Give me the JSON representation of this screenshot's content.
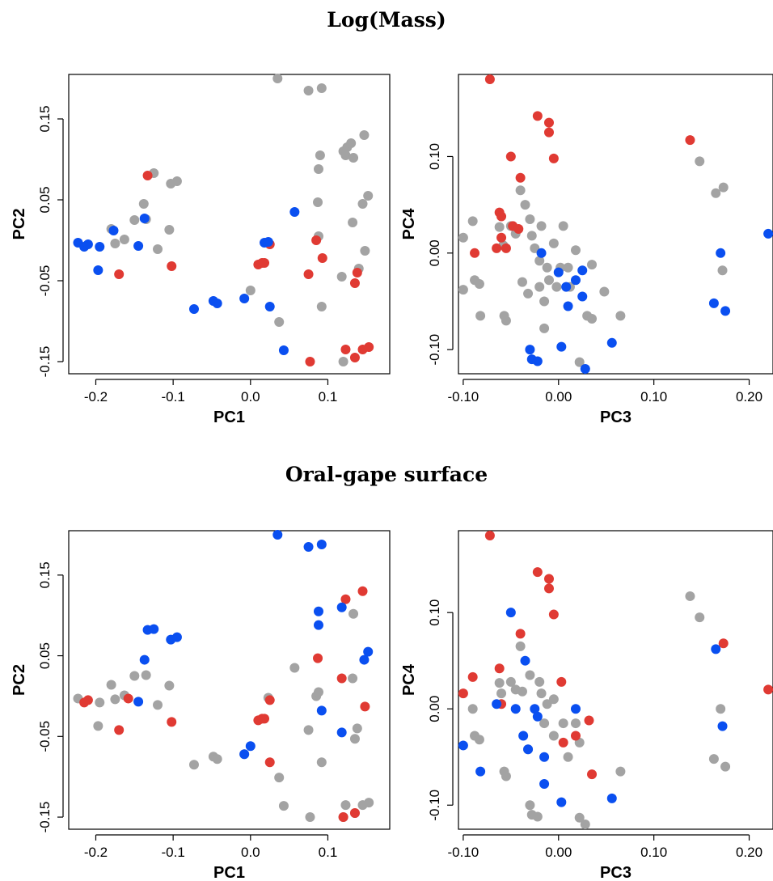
{
  "sections": {
    "mass_title": "Log(Mass)",
    "gape_title": "Oral-gape surface"
  },
  "colors": {
    "grey": "#a3a3a3",
    "red": "#e03a33",
    "blue": "#0a4ff0"
  },
  "chart_data": [
    {
      "type": "scatter",
      "title": "Log(Mass)",
      "xlabel": "PC1",
      "ylabel": "PC2",
      "xlim": [
        -0.235,
        0.18
      ],
      "ylim": [
        -0.165,
        0.205
      ],
      "xticks": [
        -0.2,
        -0.1,
        0.0,
        0.1
      ],
      "xtick_labels": [
        "-0.2",
        "-0.1",
        "0.0",
        "0.1"
      ],
      "yticks": [
        -0.15,
        -0.05,
        0.05,
        0.15
      ],
      "ytick_labels": [
        "-0.15",
        "-0.05",
        "0.05",
        "0.15"
      ],
      "grey": [
        [
          -0.18,
          0.014
        ],
        [
          -0.175,
          -0.004
        ],
        [
          -0.163,
          0.001
        ],
        [
          -0.15,
          0.025
        ],
        [
          -0.138,
          0.045
        ],
        [
          -0.135,
          0.026
        ],
        [
          -0.125,
          0.083
        ],
        [
          -0.12,
          -0.011
        ],
        [
          -0.105,
          0.013
        ],
        [
          -0.103,
          0.07
        ],
        [
          -0.095,
          0.073
        ],
        [
          0.0,
          -0.062
        ],
        [
          0.035,
          0.2
        ],
        [
          0.037,
          -0.101
        ],
        [
          0.075,
          0.185
        ],
        [
          0.087,
          0.047
        ],
        [
          0.088,
          0.005
        ],
        [
          0.088,
          0.088
        ],
        [
          0.09,
          0.105
        ],
        [
          0.092,
          0.188
        ],
        [
          0.092,
          -0.082
        ],
        [
          0.118,
          -0.045
        ],
        [
          0.12,
          0.11
        ],
        [
          0.12,
          -0.15
        ],
        [
          0.123,
          0.105
        ],
        [
          0.125,
          0.115
        ],
        [
          0.13,
          0.12
        ],
        [
          0.133,
          0.102
        ],
        [
          0.14,
          -0.035
        ],
        [
          0.145,
          0.045
        ],
        [
          0.147,
          0.13
        ],
        [
          0.148,
          -0.013
        ],
        [
          0.152,
          0.055
        ],
        [
          0.132,
          0.022
        ]
      ],
      "red": [
        [
          -0.17,
          -0.042
        ],
        [
          -0.133,
          0.08
        ],
        [
          -0.102,
          -0.032
        ],
        [
          0.01,
          -0.03
        ],
        [
          0.015,
          -0.028
        ],
        [
          0.018,
          -0.028
        ],
        [
          0.025,
          -0.005
        ],
        [
          0.075,
          -0.042
        ],
        [
          0.077,
          -0.15
        ],
        [
          0.085,
          0.0
        ],
        [
          0.093,
          -0.022
        ],
        [
          0.123,
          -0.135
        ],
        [
          0.135,
          -0.145
        ],
        [
          0.135,
          -0.053
        ],
        [
          0.138,
          -0.04
        ],
        [
          0.145,
          -0.135
        ],
        [
          0.153,
          -0.132
        ]
      ],
      "blue": [
        [
          -0.223,
          -0.003
        ],
        [
          -0.215,
          -0.008
        ],
        [
          -0.21,
          -0.005
        ],
        [
          -0.197,
          -0.037
        ],
        [
          -0.195,
          -0.008
        ],
        [
          -0.177,
          0.012
        ],
        [
          -0.145,
          -0.007
        ],
        [
          -0.137,
          0.027
        ],
        [
          -0.073,
          -0.085
        ],
        [
          -0.048,
          -0.075
        ],
        [
          -0.043,
          -0.078
        ],
        [
          -0.008,
          -0.072
        ],
        [
          0.018,
          -0.003
        ],
        [
          0.023,
          -0.002
        ],
        [
          0.025,
          -0.082
        ],
        [
          0.043,
          -0.136
        ],
        [
          0.057,
          0.035
        ]
      ]
    },
    {
      "type": "scatter",
      "title": "Log(Mass)",
      "xlabel": "PC3",
      "ylabel": "PC4",
      "xlim": [
        -0.105,
        0.225
      ],
      "ylim": [
        -0.125,
        0.185
      ],
      "xticks": [
        -0.1,
        0.0,
        0.1,
        0.2
      ],
      "xtick_labels": [
        "-0.10",
        "0.00",
        "0.10",
        "0.20"
      ],
      "yticks": [
        -0.1,
        0.0,
        0.1
      ],
      "ytick_labels": [
        "-0.10",
        "0.00",
        "0.10"
      ],
      "grey": [
        [
          -0.1,
          0.016
        ],
        [
          -0.1,
          -0.038
        ],
        [
          -0.09,
          0.033
        ],
        [
          -0.088,
          -0.028
        ],
        [
          -0.083,
          -0.032
        ],
        [
          -0.082,
          -0.065
        ],
        [
          -0.062,
          0.027
        ],
        [
          -0.058,
          0.008
        ],
        [
          -0.057,
          -0.065
        ],
        [
          -0.055,
          -0.07
        ],
        [
          -0.05,
          0.028
        ],
        [
          -0.045,
          0.02
        ],
        [
          -0.04,
          0.065
        ],
        [
          -0.038,
          -0.03
        ],
        [
          -0.035,
          0.05
        ],
        [
          -0.032,
          -0.042
        ],
        [
          -0.03,
          0.035
        ],
        [
          -0.028,
          0.018
        ],
        [
          -0.025,
          0.005
        ],
        [
          -0.02,
          -0.008
        ],
        [
          -0.02,
          -0.035
        ],
        [
          -0.018,
          0.028
        ],
        [
          -0.015,
          -0.05
        ],
        [
          -0.015,
          -0.078
        ],
        [
          -0.012,
          -0.015
        ],
        [
          -0.01,
          -0.028
        ],
        [
          -0.005,
          0.01
        ],
        [
          -0.002,
          -0.035
        ],
        [
          0.002,
          -0.015
        ],
        [
          0.005,
          0.028
        ],
        [
          0.01,
          -0.015
        ],
        [
          0.012,
          -0.035
        ],
        [
          0.018,
          0.003
        ],
        [
          0.022,
          -0.113
        ],
        [
          0.03,
          -0.065
        ],
        [
          0.035,
          -0.012
        ],
        [
          0.035,
          -0.068
        ],
        [
          0.048,
          -0.04
        ],
        [
          0.065,
          -0.065
        ],
        [
          0.148,
          0.095
        ],
        [
          0.165,
          0.062
        ],
        [
          0.172,
          -0.018
        ],
        [
          0.173,
          0.068
        ]
      ],
      "red": [
        [
          -0.088,
          0.0
        ],
        [
          -0.072,
          0.18
        ],
        [
          -0.065,
          0.005
        ],
        [
          -0.062,
          0.042
        ],
        [
          -0.06,
          0.038
        ],
        [
          -0.06,
          0.016
        ],
        [
          -0.055,
          0.005
        ],
        [
          -0.05,
          0.1
        ],
        [
          -0.048,
          0.028
        ],
        [
          -0.042,
          0.025
        ],
        [
          -0.04,
          0.078
        ],
        [
          -0.022,
          0.142
        ],
        [
          -0.01,
          0.135
        ],
        [
          -0.01,
          0.125
        ],
        [
          -0.005,
          0.098
        ],
        [
          0.138,
          0.117
        ]
      ],
      "blue": [
        [
          -0.03,
          -0.1
        ],
        [
          -0.028,
          -0.11
        ],
        [
          -0.022,
          -0.112
        ],
        [
          -0.018,
          0.0
        ],
        [
          0.0,
          -0.02
        ],
        [
          0.003,
          -0.097
        ],
        [
          0.008,
          -0.035
        ],
        [
          0.01,
          -0.055
        ],
        [
          0.018,
          -0.028
        ],
        [
          0.025,
          -0.018
        ],
        [
          0.025,
          -0.045
        ],
        [
          0.028,
          -0.12
        ],
        [
          0.056,
          -0.093
        ],
        [
          0.163,
          -0.052
        ],
        [
          0.17,
          0.0
        ],
        [
          0.175,
          -0.06
        ],
        [
          0.22,
          0.02
        ]
      ]
    },
    {
      "type": "scatter",
      "title": "Oral-gape surface",
      "xlabel": "PC1",
      "ylabel": "PC2",
      "xlim": [
        -0.235,
        0.18
      ],
      "ylim": [
        -0.165,
        0.205
      ],
      "xticks": [
        -0.2,
        -0.1,
        0.0,
        0.1
      ],
      "xtick_labels": [
        "-0.2",
        "-0.1",
        "0.0",
        "0.1"
      ],
      "yticks": [
        -0.15,
        -0.05,
        0.05,
        0.15
      ],
      "ytick_labels": [
        "-0.15",
        "-0.05",
        "0.05",
        "0.15"
      ],
      "grey": [
        [
          -0.223,
          -0.003
        ],
        [
          -0.197,
          -0.037
        ],
        [
          -0.195,
          -0.008
        ],
        [
          -0.18,
          0.014
        ],
        [
          -0.175,
          -0.004
        ],
        [
          -0.163,
          0.001
        ],
        [
          -0.15,
          0.025
        ],
        [
          -0.135,
          0.026
        ],
        [
          -0.12,
          -0.011
        ],
        [
          -0.105,
          0.013
        ],
        [
          -0.073,
          -0.085
        ],
        [
          -0.048,
          -0.075
        ],
        [
          -0.043,
          -0.078
        ],
        [
          -0.008,
          -0.072
        ],
        [
          0.023,
          -0.002
        ],
        [
          0.037,
          -0.101
        ],
        [
          0.043,
          -0.136
        ],
        [
          0.057,
          0.035
        ],
        [
          0.075,
          -0.042
        ],
        [
          0.077,
          -0.15
        ],
        [
          0.085,
          0.0
        ],
        [
          0.088,
          0.005
        ],
        [
          0.092,
          -0.082
        ],
        [
          0.123,
          -0.135
        ],
        [
          0.132,
          0.022
        ],
        [
          0.133,
          0.102
        ],
        [
          0.135,
          -0.053
        ],
        [
          0.138,
          -0.04
        ],
        [
          0.145,
          -0.135
        ],
        [
          0.153,
          -0.132
        ],
        [
          0.12,
          -0.15
        ],
        [
          0.135,
          -0.145
        ]
      ],
      "red": [
        [
          -0.21,
          -0.005
        ],
        [
          -0.215,
          -0.008
        ],
        [
          -0.17,
          -0.042
        ],
        [
          -0.158,
          -0.003
        ],
        [
          -0.102,
          -0.032
        ],
        [
          0.01,
          -0.03
        ],
        [
          0.015,
          -0.028
        ],
        [
          0.018,
          -0.028
        ],
        [
          0.025,
          -0.005
        ],
        [
          0.025,
          -0.082
        ],
        [
          0.087,
          0.047
        ],
        [
          0.118,
          0.022
        ],
        [
          0.12,
          -0.15
        ],
        [
          0.123,
          0.12
        ],
        [
          0.135,
          -0.145
        ],
        [
          0.145,
          0.13
        ],
        [
          0.148,
          -0.013
        ]
      ],
      "blue": [
        [
          -0.145,
          -0.007
        ],
        [
          -0.137,
          0.045
        ],
        [
          -0.133,
          0.082
        ],
        [
          -0.125,
          0.083
        ],
        [
          -0.103,
          0.07
        ],
        [
          -0.095,
          0.073
        ],
        [
          0.0,
          -0.062
        ],
        [
          -0.008,
          -0.072
        ],
        [
          0.035,
          0.2
        ],
        [
          0.075,
          0.185
        ],
        [
          0.088,
          0.088
        ],
        [
          0.088,
          0.105
        ],
        [
          0.092,
          0.188
        ],
        [
          0.092,
          -0.018
        ],
        [
          0.118,
          -0.045
        ],
        [
          0.118,
          0.11
        ],
        [
          0.147,
          0.045
        ],
        [
          0.152,
          0.055
        ]
      ]
    },
    {
      "type": "scatter",
      "title": "Oral-gape surface",
      "xlabel": "PC3",
      "ylabel": "PC4",
      "xlim": [
        -0.105,
        0.225
      ],
      "ylim": [
        -0.125,
        0.185
      ],
      "xticks": [
        -0.1,
        0.0,
        0.1,
        0.2
      ],
      "xtick_labels": [
        "-0.10",
        "0.00",
        "0.10",
        "0.20"
      ],
      "yticks": [
        -0.1,
        0.0,
        0.1
      ],
      "ytick_labels": [
        "-0.10",
        "0.00",
        "0.10"
      ],
      "grey": [
        [
          -0.09,
          0.0
        ],
        [
          -0.088,
          -0.028
        ],
        [
          -0.083,
          -0.032
        ],
        [
          -0.062,
          0.027
        ],
        [
          -0.06,
          0.016
        ],
        [
          -0.057,
          -0.065
        ],
        [
          -0.055,
          -0.07
        ],
        [
          -0.05,
          0.028
        ],
        [
          -0.045,
          0.02
        ],
        [
          -0.04,
          0.065
        ],
        [
          -0.038,
          0.018
        ],
        [
          -0.032,
          -0.042
        ],
        [
          -0.03,
          0.035
        ],
        [
          -0.03,
          -0.1
        ],
        [
          -0.028,
          -0.11
        ],
        [
          -0.022,
          -0.112
        ],
        [
          -0.02,
          0.028
        ],
        [
          -0.018,
          0.016
        ],
        [
          -0.015,
          -0.015
        ],
        [
          -0.012,
          0.005
        ],
        [
          -0.005,
          0.01
        ],
        [
          -0.005,
          -0.028
        ],
        [
          0.005,
          -0.015
        ],
        [
          0.01,
          -0.05
        ],
        [
          0.018,
          -0.015
        ],
        [
          0.022,
          -0.113
        ],
        [
          0.022,
          -0.035
        ],
        [
          0.028,
          -0.12
        ],
        [
          0.065,
          -0.065
        ],
        [
          0.138,
          0.117
        ],
        [
          0.148,
          0.095
        ],
        [
          0.163,
          -0.052
        ],
        [
          0.17,
          0.0
        ],
        [
          0.175,
          -0.06
        ]
      ],
      "red": [
        [
          -0.1,
          0.016
        ],
        [
          -0.09,
          0.033
        ],
        [
          -0.072,
          0.18
        ],
        [
          -0.062,
          0.042
        ],
        [
          -0.06,
          0.005
        ],
        [
          -0.04,
          0.078
        ],
        [
          -0.022,
          0.142
        ],
        [
          -0.01,
          0.135
        ],
        [
          -0.01,
          0.125
        ],
        [
          -0.005,
          0.098
        ],
        [
          0.003,
          0.028
        ],
        [
          0.005,
          -0.035
        ],
        [
          0.018,
          -0.028
        ],
        [
          0.032,
          -0.012
        ],
        [
          0.035,
          -0.068
        ],
        [
          0.173,
          0.068
        ],
        [
          0.22,
          0.02
        ]
      ],
      "blue": [
        [
          -0.1,
          -0.038
        ],
        [
          -0.082,
          -0.065
        ],
        [
          -0.065,
          0.005
        ],
        [
          -0.05,
          0.1
        ],
        [
          -0.045,
          0.0
        ],
        [
          -0.037,
          -0.028
        ],
        [
          -0.035,
          0.05
        ],
        [
          -0.032,
          -0.042
        ],
        [
          -0.025,
          0.0
        ],
        [
          -0.015,
          -0.05
        ],
        [
          -0.015,
          -0.078
        ],
        [
          0.018,
          0.0
        ],
        [
          0.003,
          -0.097
        ],
        [
          0.056,
          -0.093
        ],
        [
          0.165,
          0.062
        ],
        [
          0.172,
          -0.018
        ],
        [
          -0.022,
          -0.008
        ]
      ]
    }
  ]
}
